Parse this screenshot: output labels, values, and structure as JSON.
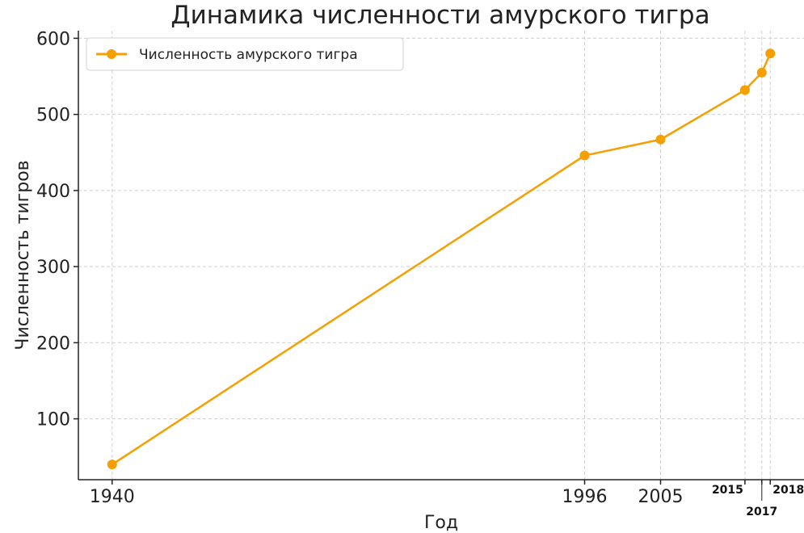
{
  "chart_data": {
    "type": "line",
    "title": "Динамика численности амурского тигра",
    "xlabel": "Год",
    "ylabel": "Численность тигров",
    "x": [
      1940,
      1996,
      2005,
      2015,
      2017,
      2018
    ],
    "x_tick_labels": [
      "1940",
      "1996",
      "2005",
      "2015",
      "2017",
      "2018"
    ],
    "y_ticks": [
      100,
      200,
      300,
      400,
      500,
      600
    ],
    "xlim": [
      1936,
      2022
    ],
    "ylim": [
      20,
      610
    ],
    "grid": true,
    "legend_position": "top-left",
    "series": [
      {
        "name": "Численность амурского тигра",
        "values": [
          40,
          446,
          467,
          532,
          555,
          580
        ],
        "color": "#f5a000"
      }
    ]
  }
}
